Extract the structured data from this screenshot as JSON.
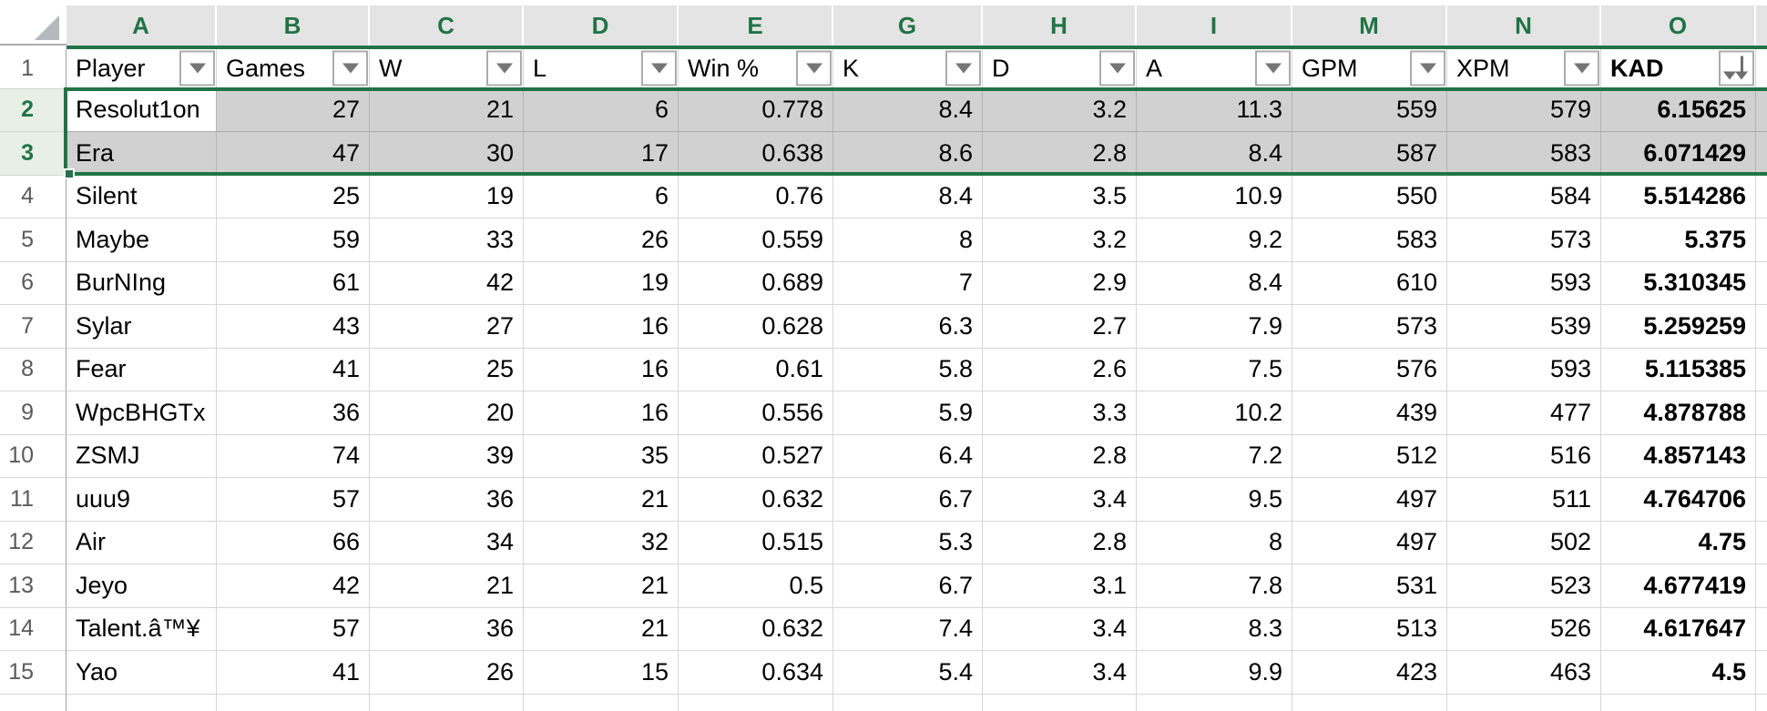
{
  "app": "spreadsheet-grid",
  "column_letters": [
    "A",
    "B",
    "C",
    "D",
    "E",
    "G",
    "H",
    "I",
    "M",
    "N",
    "O"
  ],
  "header_row": {
    "row_number": "1",
    "headers": [
      {
        "label": "Player",
        "filter": "dropdown"
      },
      {
        "label": "Games",
        "filter": "dropdown"
      },
      {
        "label": "W",
        "filter": "dropdown"
      },
      {
        "label": "L",
        "filter": "dropdown"
      },
      {
        "label": "Win %",
        "filter": "dropdown"
      },
      {
        "label": "K",
        "filter": "dropdown"
      },
      {
        "label": "D",
        "filter": "dropdown"
      },
      {
        "label": "A",
        "filter": "dropdown"
      },
      {
        "label": "GPM",
        "filter": "dropdown"
      },
      {
        "label": "XPM",
        "filter": "dropdown"
      },
      {
        "label": "KAD",
        "filter": "sort-descending",
        "bold": true
      }
    ]
  },
  "data_rows": [
    {
      "row_number": "2",
      "selected": true,
      "cells": [
        "Resolut1on",
        "27",
        "21",
        "6",
        "0.778",
        "8.4",
        "3.2",
        "11.3",
        "559",
        "579",
        "6.15625"
      ]
    },
    {
      "row_number": "3",
      "selected": true,
      "cells": [
        "Era",
        "47",
        "30",
        "17",
        "0.638",
        "8.6",
        "2.8",
        "8.4",
        "587",
        "583",
        "6.071429"
      ]
    },
    {
      "row_number": "4",
      "selected": false,
      "cells": [
        "Silent",
        "25",
        "19",
        "6",
        "0.76",
        "8.4",
        "3.5",
        "10.9",
        "550",
        "584",
        "5.514286"
      ]
    },
    {
      "row_number": "5",
      "selected": false,
      "cells": [
        "Maybe",
        "59",
        "33",
        "26",
        "0.559",
        "8",
        "3.2",
        "9.2",
        "583",
        "573",
        "5.375"
      ]
    },
    {
      "row_number": "6",
      "selected": false,
      "cells": [
        "BurNIng",
        "61",
        "42",
        "19",
        "0.689",
        "7",
        "2.9",
        "8.4",
        "610",
        "593",
        "5.310345"
      ]
    },
    {
      "row_number": "7",
      "selected": false,
      "cells": [
        "Sylar",
        "43",
        "27",
        "16",
        "0.628",
        "6.3",
        "2.7",
        "7.9",
        "573",
        "539",
        "5.259259"
      ]
    },
    {
      "row_number": "8",
      "selected": false,
      "cells": [
        "Fear",
        "41",
        "25",
        "16",
        "0.61",
        "5.8",
        "2.6",
        "7.5",
        "576",
        "593",
        "5.115385"
      ]
    },
    {
      "row_number": "9",
      "selected": false,
      "cells": [
        "WpcBHGTx",
        "36",
        "20",
        "16",
        "0.556",
        "5.9",
        "3.3",
        "10.2",
        "439",
        "477",
        "4.878788"
      ]
    },
    {
      "row_number": "10",
      "selected": false,
      "cells": [
        "ZSMJ",
        "74",
        "39",
        "35",
        "0.527",
        "6.4",
        "2.8",
        "7.2",
        "512",
        "516",
        "4.857143"
      ]
    },
    {
      "row_number": "11",
      "selected": false,
      "cells": [
        "uuu9",
        "57",
        "36",
        "21",
        "0.632",
        "6.7",
        "3.4",
        "9.5",
        "497",
        "511",
        "4.764706"
      ]
    },
    {
      "row_number": "12",
      "selected": false,
      "cells": [
        "Air",
        "66",
        "34",
        "32",
        "0.515",
        "5.3",
        "2.8",
        "8",
        "497",
        "502",
        "4.75"
      ]
    },
    {
      "row_number": "13",
      "selected": false,
      "cells": [
        "Jeyo",
        "42",
        "21",
        "21",
        "0.5",
        "6.7",
        "3.1",
        "7.8",
        "531",
        "523",
        "4.677419"
      ]
    },
    {
      "row_number": "14",
      "selected": false,
      "cells": [
        "Talent.â™¥",
        "57",
        "36",
        "21",
        "0.632",
        "7.4",
        "3.4",
        "8.3",
        "513",
        "526",
        "4.617647"
      ]
    },
    {
      "row_number": "15",
      "selected": false,
      "cells": [
        "Yao",
        "41",
        "26",
        "15",
        "0.634",
        "5.4",
        "3.4",
        "9.9",
        "423",
        "463",
        "4.5"
      ]
    }
  ],
  "selection": {
    "type": "full-row-selection",
    "selected_rows": [
      "2",
      "3"
    ],
    "active_cell": "A2"
  },
  "colors": {
    "excel_green": "#217346",
    "selection_fill": "#d1d1d1",
    "column_header_bg": "#e4e4e4",
    "selected_row_header_bg": "#e7efe7",
    "gridline": "#d6d6d6"
  }
}
